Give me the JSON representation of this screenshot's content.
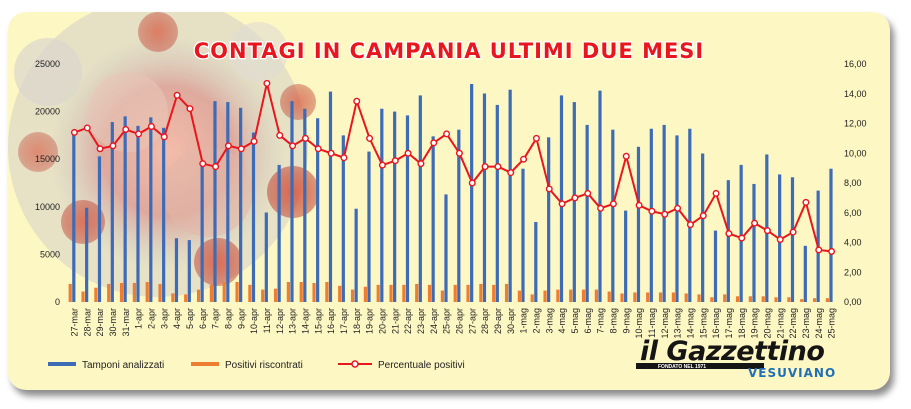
{
  "chart_data": {
    "type": "bar",
    "title": "CONTAGI IN CAMPANIA ULTIMI DUE MESI",
    "categories": [
      "27-mar",
      "28-mar",
      "29-mar",
      "30-mar",
      "31-mar",
      "1-apr",
      "2-apr",
      "3-apr",
      "4-apr",
      "5-apr",
      "6-apr",
      "7-apr",
      "8-apr",
      "9-apr",
      "10-apr",
      "11-apr",
      "12-apr",
      "13-apr",
      "14-apr",
      "15-apr",
      "16-apr",
      "17-apr",
      "18-apr",
      "19-apr",
      "20-apr",
      "21-apr",
      "22-apr",
      "23-apr",
      "24-apr",
      "25-apr",
      "26-apr",
      "27-apr",
      "28-apr",
      "29-apr",
      "30-apr",
      "1-mag",
      "2-mag",
      "3-mag",
      "4-mag",
      "5-mag",
      "6-mag",
      "7-mag",
      "8-mag",
      "9-mag",
      "10-mag",
      "11-mag",
      "12-mag",
      "13-mag",
      "14-mag",
      "15-mag",
      "16-mag",
      "17-mag",
      "18-mag",
      "19-mag",
      "20-mag",
      "21-mag",
      "22-mag",
      "23-mag",
      "24-mag",
      "25-mag"
    ],
    "series": [
      {
        "name": "Tamponi analizzati",
        "type": "bar",
        "axis": "left",
        "color": "#3d6bb5",
        "values": [
          17900,
          9900,
          15300,
          18900,
          19500,
          18500,
          19400,
          18300,
          6700,
          6500,
          14800,
          21100,
          21000,
          20400,
          17800,
          9400,
          14400,
          21100,
          20300,
          19300,
          22100,
          17500,
          9800,
          15800,
          20300,
          20000,
          19600,
          21700,
          17400,
          11300,
          18100,
          22900,
          21900,
          20700,
          22300,
          14000,
          8400,
          17300,
          21700,
          21000,
          18600,
          22200,
          18100,
          9600,
          16300,
          18200,
          18600,
          17500,
          18200,
          15600,
          7500,
          12800,
          14400,
          12400,
          15500,
          13400,
          13100,
          5900,
          11700,
          14000
        ]
      },
      {
        "name": "Positivi riscontrati",
        "type": "bar",
        "axis": "left",
        "color": "#ed7d31",
        "values": [
          1900,
          1100,
          1500,
          1900,
          2000,
          2000,
          2100,
          1900,
          900,
          800,
          1300,
          1800,
          2100,
          2100,
          1800,
          1300,
          1400,
          2100,
          2100,
          2000,
          2100,
          1700,
          1300,
          1600,
          1800,
          1800,
          1800,
          1900,
          1800,
          1200,
          1800,
          1800,
          1900,
          1800,
          1900,
          1200,
          800,
          1200,
          1300,
          1300,
          1300,
          1300,
          1100,
          900,
          1000,
          1000,
          1000,
          1000,
          900,
          800,
          500,
          800,
          600,
          600,
          600,
          500,
          500,
          300,
          400,
          400
        ]
      },
      {
        "name": "Percentuale positivi",
        "type": "line",
        "axis": "right",
        "color": "#e8161e",
        "values": [
          11.4,
          11.7,
          10.3,
          10.5,
          11.6,
          11.3,
          11.8,
          11.1,
          13.9,
          13.0,
          9.3,
          9.1,
          10.5,
          10.3,
          10.8,
          14.7,
          11.2,
          10.5,
          11.0,
          10.3,
          10.0,
          9.7,
          13.5,
          11.0,
          9.2,
          9.5,
          10.0,
          9.3,
          10.7,
          11.3,
          10.0,
          8.0,
          9.1,
          9.1,
          8.7,
          9.6,
          11.0,
          7.6,
          6.6,
          7.0,
          7.3,
          6.3,
          6.6,
          9.8,
          6.5,
          6.1,
          5.9,
          6.3,
          5.2,
          5.8,
          7.3,
          4.6,
          4.3,
          5.3,
          4.8,
          4.2,
          4.7,
          6.7,
          3.5,
          3.4
        ]
      }
    ],
    "yLeft": {
      "min": 0,
      "max": 25000,
      "step": 5000,
      "ticks": [
        "0",
        "5000",
        "10000",
        "15000",
        "20000",
        "25000"
      ]
    },
    "yRight": {
      "min": 0,
      "max": 16,
      "step": 2,
      "ticks": [
        "0,00",
        "2,00",
        "4,00",
        "6,00",
        "8,00",
        "10,00",
        "12,00",
        "14,00",
        "16,00"
      ]
    },
    "legend": {
      "position": "bottom-left"
    }
  },
  "brand": {
    "name": "il Gazzettino",
    "subtitle": "VESUVIANO",
    "tagline": "FONDATO NEL 1971",
    "colors": {
      "dark": "#151515",
      "accent": "#1f6fb8",
      "title": "#e8161e"
    }
  }
}
